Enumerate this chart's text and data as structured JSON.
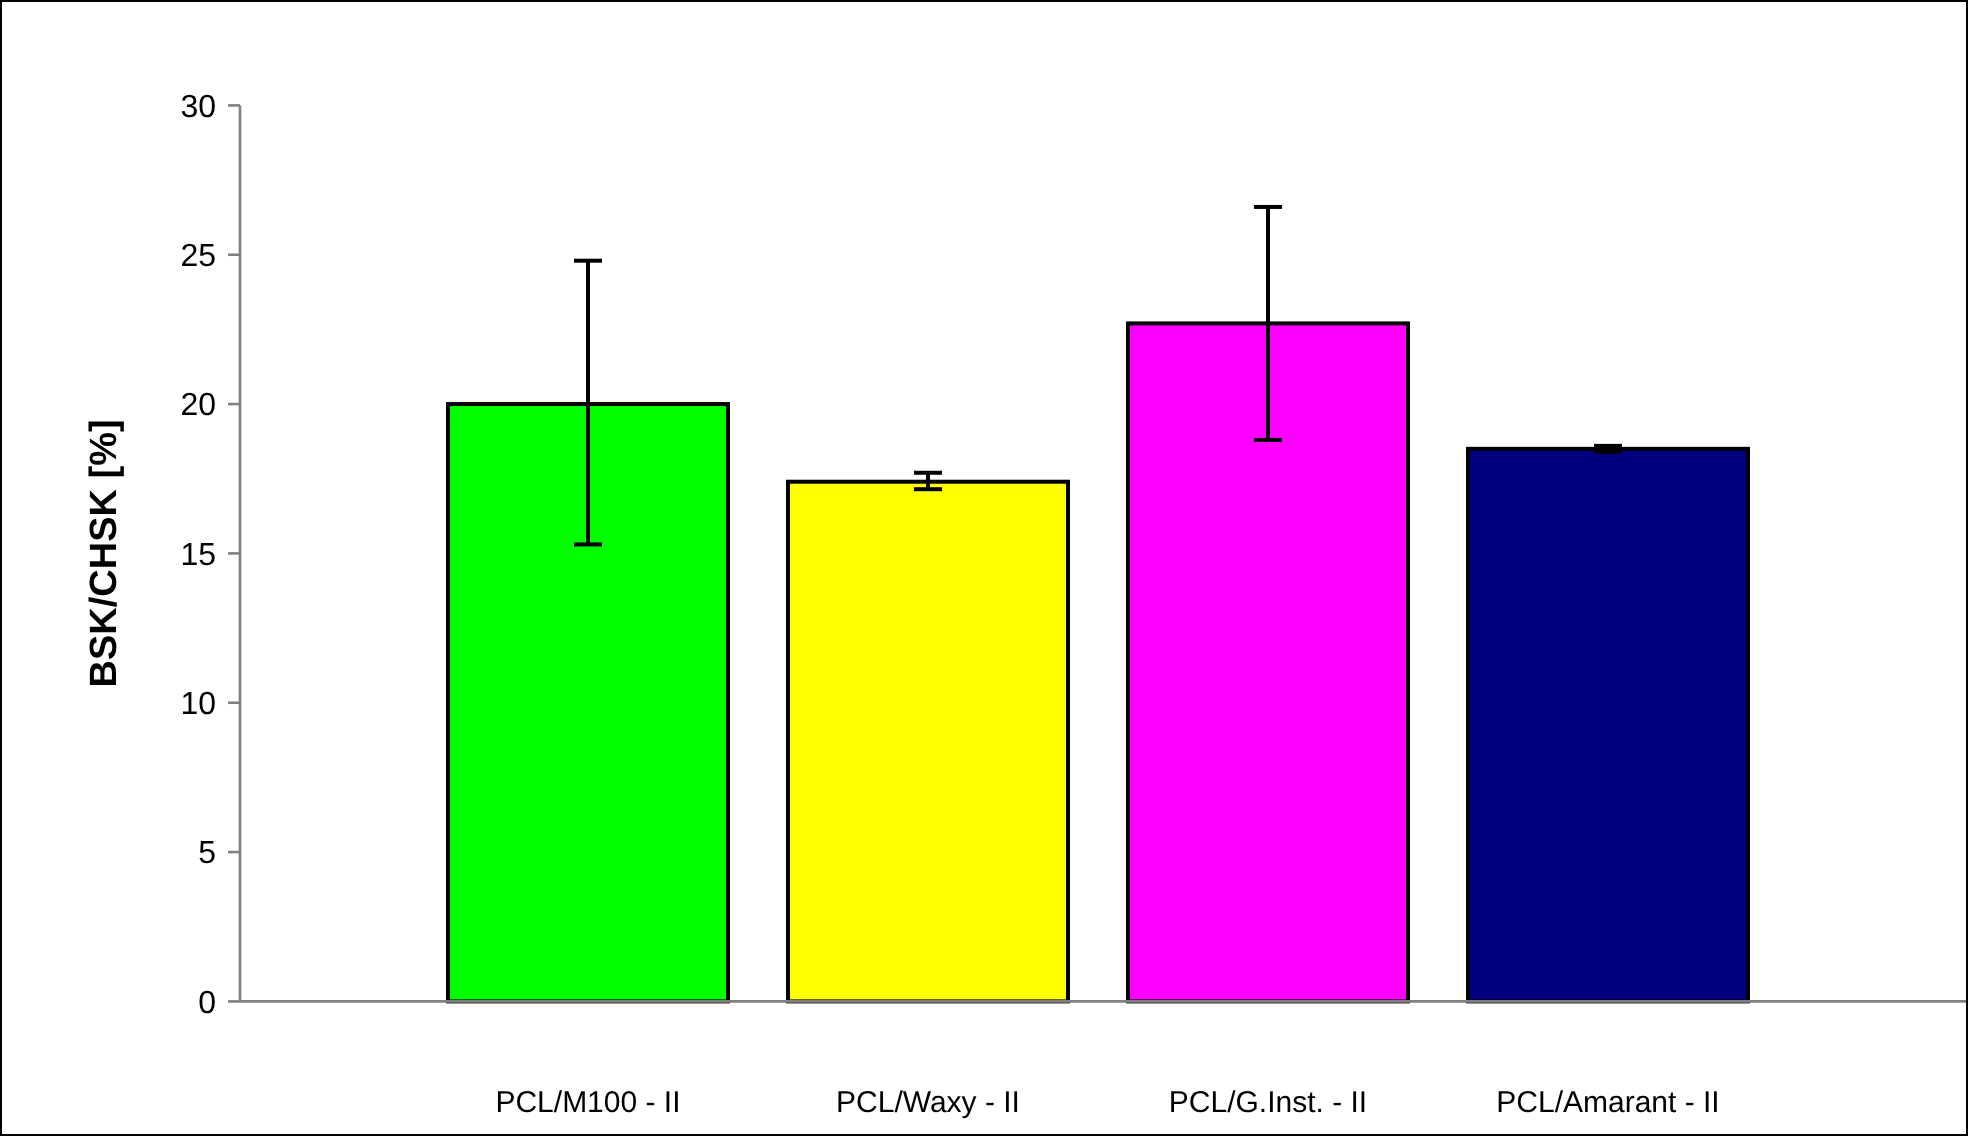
{
  "chart_data": {
    "type": "bar",
    "ylabel": "BSK/CHSK [%]",
    "categories": [
      "PCL/M100 - II",
      "PCL/Waxy - II",
      "PCL/G.Inst. - II",
      "PCL/Amarant - II"
    ],
    "values": [
      20.0,
      17.4,
      22.7,
      18.5
    ],
    "colors": [
      "#00ff00",
      "#ffff00",
      "#ff00ff",
      "#000080"
    ],
    "errors": [
      [
        15.3,
        24.8
      ],
      [
        17.15,
        17.7
      ],
      [
        18.8,
        26.6
      ],
      [
        18.4,
        18.6
      ]
    ],
    "ylim": [
      0,
      30
    ],
    "yticks": [
      0,
      5,
      10,
      15,
      20,
      25,
      30
    ]
  }
}
